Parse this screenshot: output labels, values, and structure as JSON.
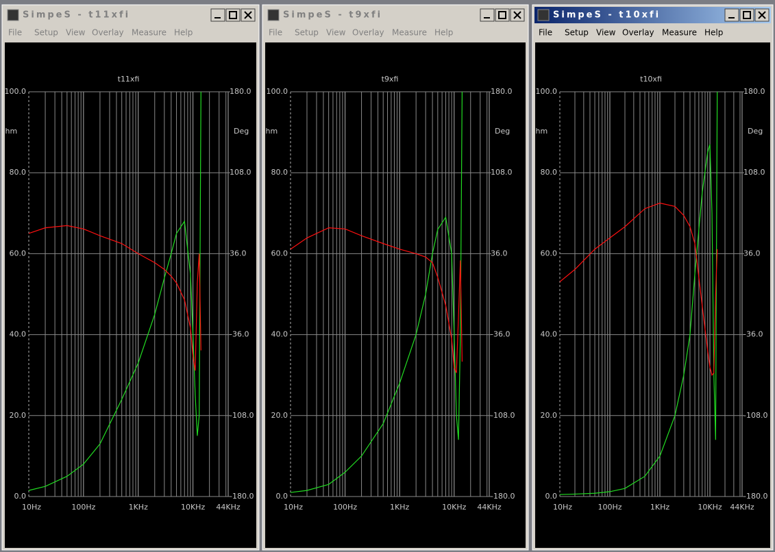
{
  "windows": [
    {
      "title": "SimpeS - t11xfi",
      "active": false,
      "menu": [
        "File",
        "Setup",
        "View",
        "Overlay",
        "Measure",
        "Help"
      ],
      "chart_data": {
        "type": "line",
        "title": "t11xfi",
        "y_label": "Ohm",
        "y2_label": "Deg",
        "xscale": "log",
        "xlim": [
          10,
          44000
        ],
        "xticks": [
          {
            "value": 10,
            "label": "10Hz"
          },
          {
            "value": 100,
            "label": "100Hz"
          },
          {
            "value": 1000,
            "label": "1KHz"
          },
          {
            "value": 10000,
            "label": "10KHz"
          },
          {
            "value": 44000,
            "label": "44KHz"
          }
        ],
        "xminor": [
          20,
          30,
          40,
          50,
          60,
          70,
          80,
          90,
          200,
          300,
          400,
          500,
          600,
          700,
          800,
          900,
          2000,
          3000,
          4000,
          5000,
          6000,
          7000,
          8000,
          9000,
          20000,
          30000,
          40000
        ],
        "ylim": [
          0,
          100
        ],
        "yticks": [
          {
            "value": 100,
            "label": "100.0"
          },
          {
            "value": 80,
            "label": "80.0"
          },
          {
            "value": 60,
            "label": "60.0"
          },
          {
            "value": 40,
            "label": "40.0"
          },
          {
            "value": 20,
            "label": "20.0"
          },
          {
            "value": 0,
            "label": "0.0"
          }
        ],
        "y2lim": [
          -180,
          180
        ],
        "y2ticks": [
          {
            "value": 180,
            "label": "180.0"
          },
          {
            "value": 108,
            "label": "108.0"
          },
          {
            "value": 36,
            "label": "36.0"
          },
          {
            "value": -36,
            "label": "-36.0"
          },
          {
            "value": -108,
            "label": "-108.0"
          },
          {
            "value": -180,
            "label": "-180.0"
          }
        ],
        "grid": true,
        "x": [
          10,
          20,
          50,
          100,
          200,
          500,
          1000,
          2000,
          3000,
          4000,
          5000,
          7000,
          9000,
          10000,
          11000,
          12000,
          13000,
          14000
        ],
        "series": [
          {
            "color": "#22dd22",
            "values": [
              1.5,
              2.5,
              5,
              8,
              13,
              24,
              33,
              45,
              54,
              60,
              65,
              68,
              55,
              40,
              25,
              15,
              20,
              100
            ]
          },
          {
            "color": "#ff1010",
            "axis": "y2",
            "values": [
              54,
              59,
              61,
              58,
              52,
              45,
              36,
              28,
              22,
              16,
              10,
              -5,
              -30,
              -55,
              -68,
              10,
              36,
              -50
            ]
          }
        ]
      }
    },
    {
      "title": "SimpeS - t9xfi",
      "active": false,
      "menu": [
        "File",
        "Setup",
        "View",
        "Overlay",
        "Measure",
        "Help"
      ],
      "chart_data": {
        "type": "line",
        "title": "t9xfi",
        "y_label": "Ohm",
        "y2_label": "Deg",
        "xscale": "log",
        "xlim": [
          10,
          44000
        ],
        "xticks": [
          {
            "value": 10,
            "label": "10Hz"
          },
          {
            "value": 100,
            "label": "100Hz"
          },
          {
            "value": 1000,
            "label": "1KHz"
          },
          {
            "value": 10000,
            "label": "10KHz"
          },
          {
            "value": 44000,
            "label": "44KHz"
          }
        ],
        "xminor": [
          20,
          30,
          40,
          50,
          60,
          70,
          80,
          90,
          200,
          300,
          400,
          500,
          600,
          700,
          800,
          900,
          2000,
          3000,
          4000,
          5000,
          6000,
          7000,
          8000,
          9000,
          20000,
          30000,
          40000
        ],
        "ylim": [
          0,
          100
        ],
        "yticks": [
          {
            "value": 100,
            "label": "100.0"
          },
          {
            "value": 80,
            "label": "80.0"
          },
          {
            "value": 60,
            "label": "60.0"
          },
          {
            "value": 40,
            "label": "40.0"
          },
          {
            "value": 20,
            "label": "20.0"
          },
          {
            "value": 0,
            "label": "0.0"
          }
        ],
        "y2lim": [
          -180,
          180
        ],
        "y2ticks": [
          {
            "value": 180,
            "label": "180.0"
          },
          {
            "value": 108,
            "label": "108.0"
          },
          {
            "value": 36,
            "label": "36.0"
          },
          {
            "value": -36,
            "label": "-36.0"
          },
          {
            "value": -108,
            "label": "-108.0"
          },
          {
            "value": -180,
            "label": "-180.0"
          }
        ],
        "grid": true,
        "x": [
          10,
          20,
          50,
          100,
          200,
          500,
          1000,
          2000,
          3000,
          4000,
          5000,
          7000,
          9000,
          10000,
          11000,
          12000,
          13000,
          14000
        ],
        "series": [
          {
            "color": "#22dd22",
            "values": [
              1,
              1.5,
              3,
              6,
              10,
              18,
              28,
              40,
              50,
              60,
              66,
              69,
              60,
              40,
              20,
              14,
              40,
              100
            ]
          },
          {
            "color": "#ff1010",
            "axis": "y2",
            "values": [
              40,
              50,
              59,
              58,
              52,
              45,
              40,
              36,
              33,
              28,
              15,
              -10,
              -40,
              -65,
              -70,
              -20,
              30,
              -60
            ]
          }
        ]
      }
    },
    {
      "title": "SimpeS - t10xfi",
      "active": true,
      "menu": [
        "File",
        "Setup",
        "View",
        "Overlay",
        "Measure",
        "Help"
      ],
      "chart_data": {
        "type": "line",
        "title": "t10xfi",
        "y_label": "Ohm",
        "y2_label": "Deg",
        "xscale": "log",
        "xlim": [
          10,
          44000
        ],
        "xticks": [
          {
            "value": 10,
            "label": "10Hz"
          },
          {
            "value": 100,
            "label": "100Hz"
          },
          {
            "value": 1000,
            "label": "1KHz"
          },
          {
            "value": 10000,
            "label": "10KHz"
          },
          {
            "value": 44000,
            "label": "44KHz"
          }
        ],
        "xminor": [
          20,
          30,
          40,
          50,
          60,
          70,
          80,
          90,
          200,
          300,
          400,
          500,
          600,
          700,
          800,
          900,
          2000,
          3000,
          4000,
          5000,
          6000,
          7000,
          8000,
          9000,
          20000,
          30000,
          40000
        ],
        "ylim": [
          0,
          100
        ],
        "yticks": [
          {
            "value": 100,
            "label": "100.0"
          },
          {
            "value": 80,
            "label": "80.0"
          },
          {
            "value": 60,
            "label": "60.0"
          },
          {
            "value": 40,
            "label": "40.0"
          },
          {
            "value": 20,
            "label": "20.0"
          },
          {
            "value": 0,
            "label": "0.0"
          }
        ],
        "y2lim": [
          -180,
          180
        ],
        "y2ticks": [
          {
            "value": 180,
            "label": "180.0"
          },
          {
            "value": 108,
            "label": "108.0"
          },
          {
            "value": 36,
            "label": "36.0"
          },
          {
            "value": -36,
            "label": "-36.0"
          },
          {
            "value": -108,
            "label": "-108.0"
          },
          {
            "value": -180,
            "label": "-180.0"
          }
        ],
        "grid": true,
        "x": [
          10,
          20,
          50,
          100,
          200,
          500,
          1000,
          2000,
          3000,
          4000,
          5000,
          7000,
          9000,
          10000,
          11000,
          12000,
          13000,
          14000
        ],
        "series": [
          {
            "color": "#22dd22",
            "values": [
              0.5,
              0.6,
              0.8,
              1.2,
              2,
              5,
              10,
              20,
              30,
              40,
              55,
              75,
              85,
              87,
              70,
              30,
              14,
              100
            ]
          },
          {
            "color": "#ff1010",
            "axis": "y2",
            "values": [
              11,
              22,
              40,
              50,
              60,
              76,
              81,
              78,
              70,
              60,
              45,
              -10,
              -50,
              -65,
              -72,
              -70,
              0,
              40
            ]
          }
        ]
      }
    }
  ]
}
